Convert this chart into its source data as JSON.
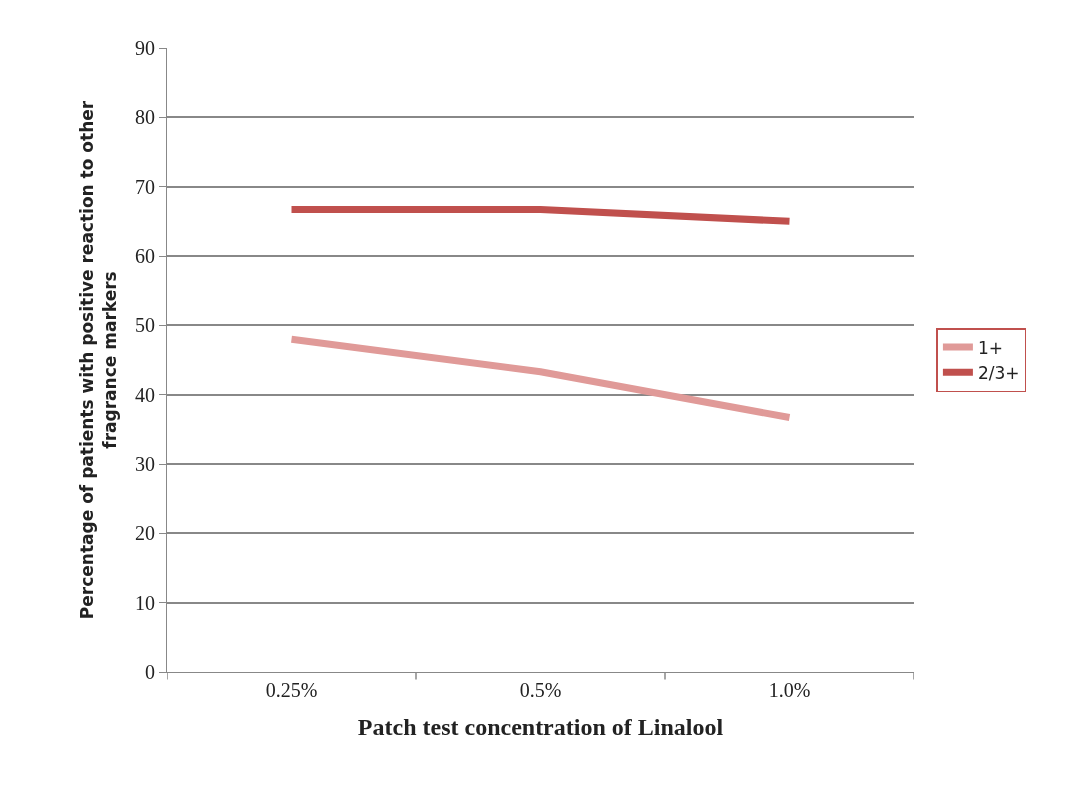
{
  "chart_data": {
    "type": "line",
    "xlabel": "Patch test concentration of Linalool",
    "ylabel": "Percentage of patients with positive reaction to other fragrance markers",
    "categories": [
      "0.25%",
      "0.5%",
      "1.0%"
    ],
    "series": [
      {
        "name": "1+",
        "color": "#e09a98",
        "values": [
          48,
          43.3,
          36.7
        ]
      },
      {
        "name": "2/3+",
        "color": "#c0504d",
        "values": [
          66.7,
          66.7,
          65
        ]
      }
    ],
    "ylim": [
      0,
      90
    ],
    "yticks": [
      0,
      10,
      20,
      30,
      40,
      50,
      60,
      70,
      80,
      90
    ],
    "grid": "y",
    "legend": "right",
    "marker": "none",
    "line_style": "solid"
  }
}
